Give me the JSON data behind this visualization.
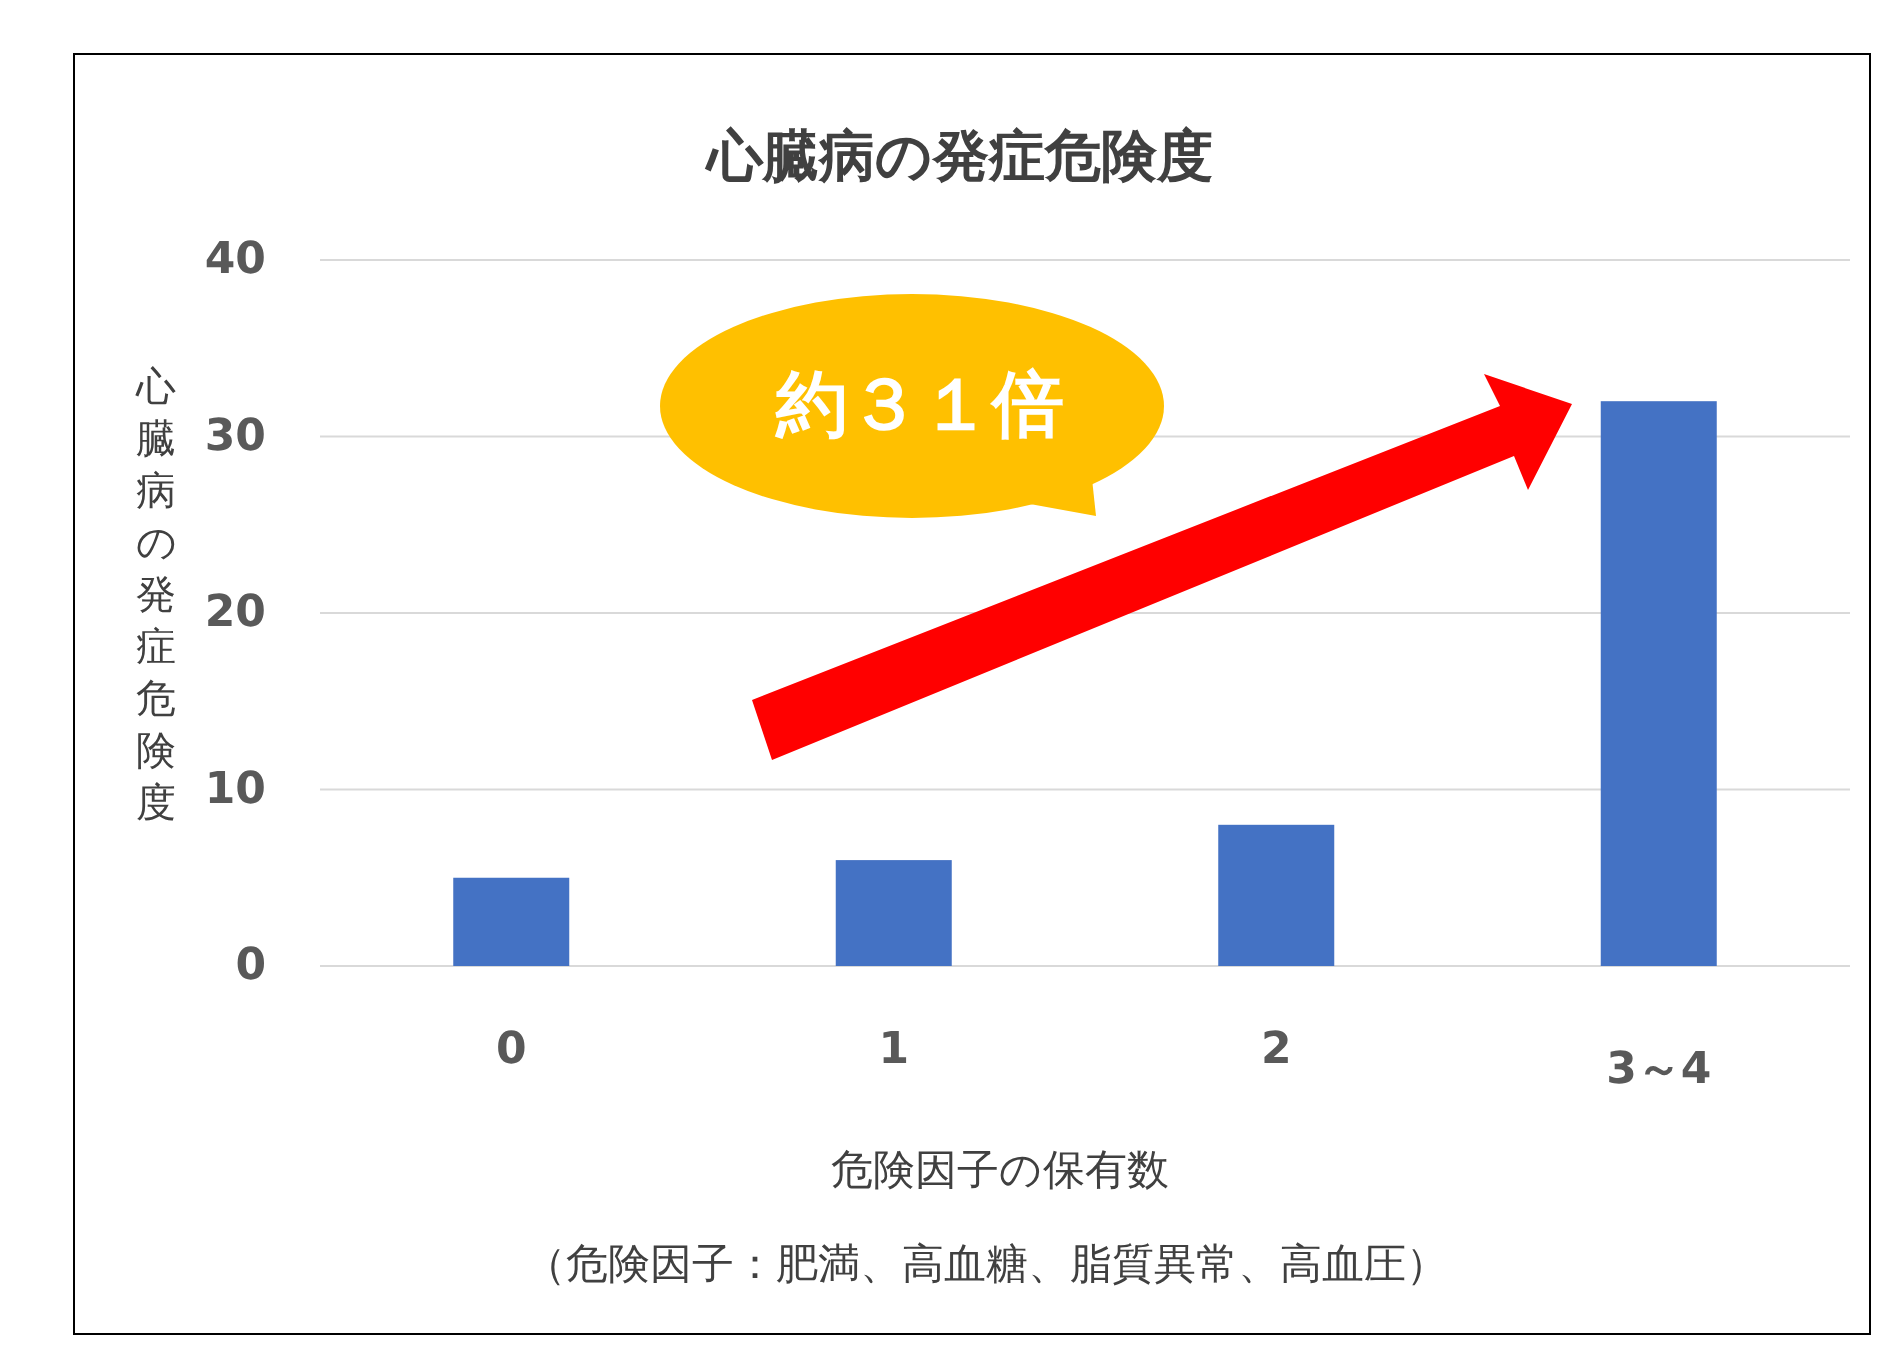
{
  "chart_data": {
    "type": "bar",
    "title": "心臓病の発症危険度",
    "xlabel": "危険因子の保有数",
    "ylabel": "心臓病の発症危険度",
    "categories": [
      "0",
      "1",
      "2",
      "3～4"
    ],
    "values": [
      5,
      6,
      8,
      32
    ],
    "color": "#4472c4",
    "ylim": [
      0,
      40
    ],
    "yticks": [
      0,
      10,
      20,
      30,
      40
    ],
    "grid": "y",
    "annotations": [
      "約３１倍",
      "（危険因子：肥満、高血糖、脂質異常、高血圧）"
    ]
  }
}
